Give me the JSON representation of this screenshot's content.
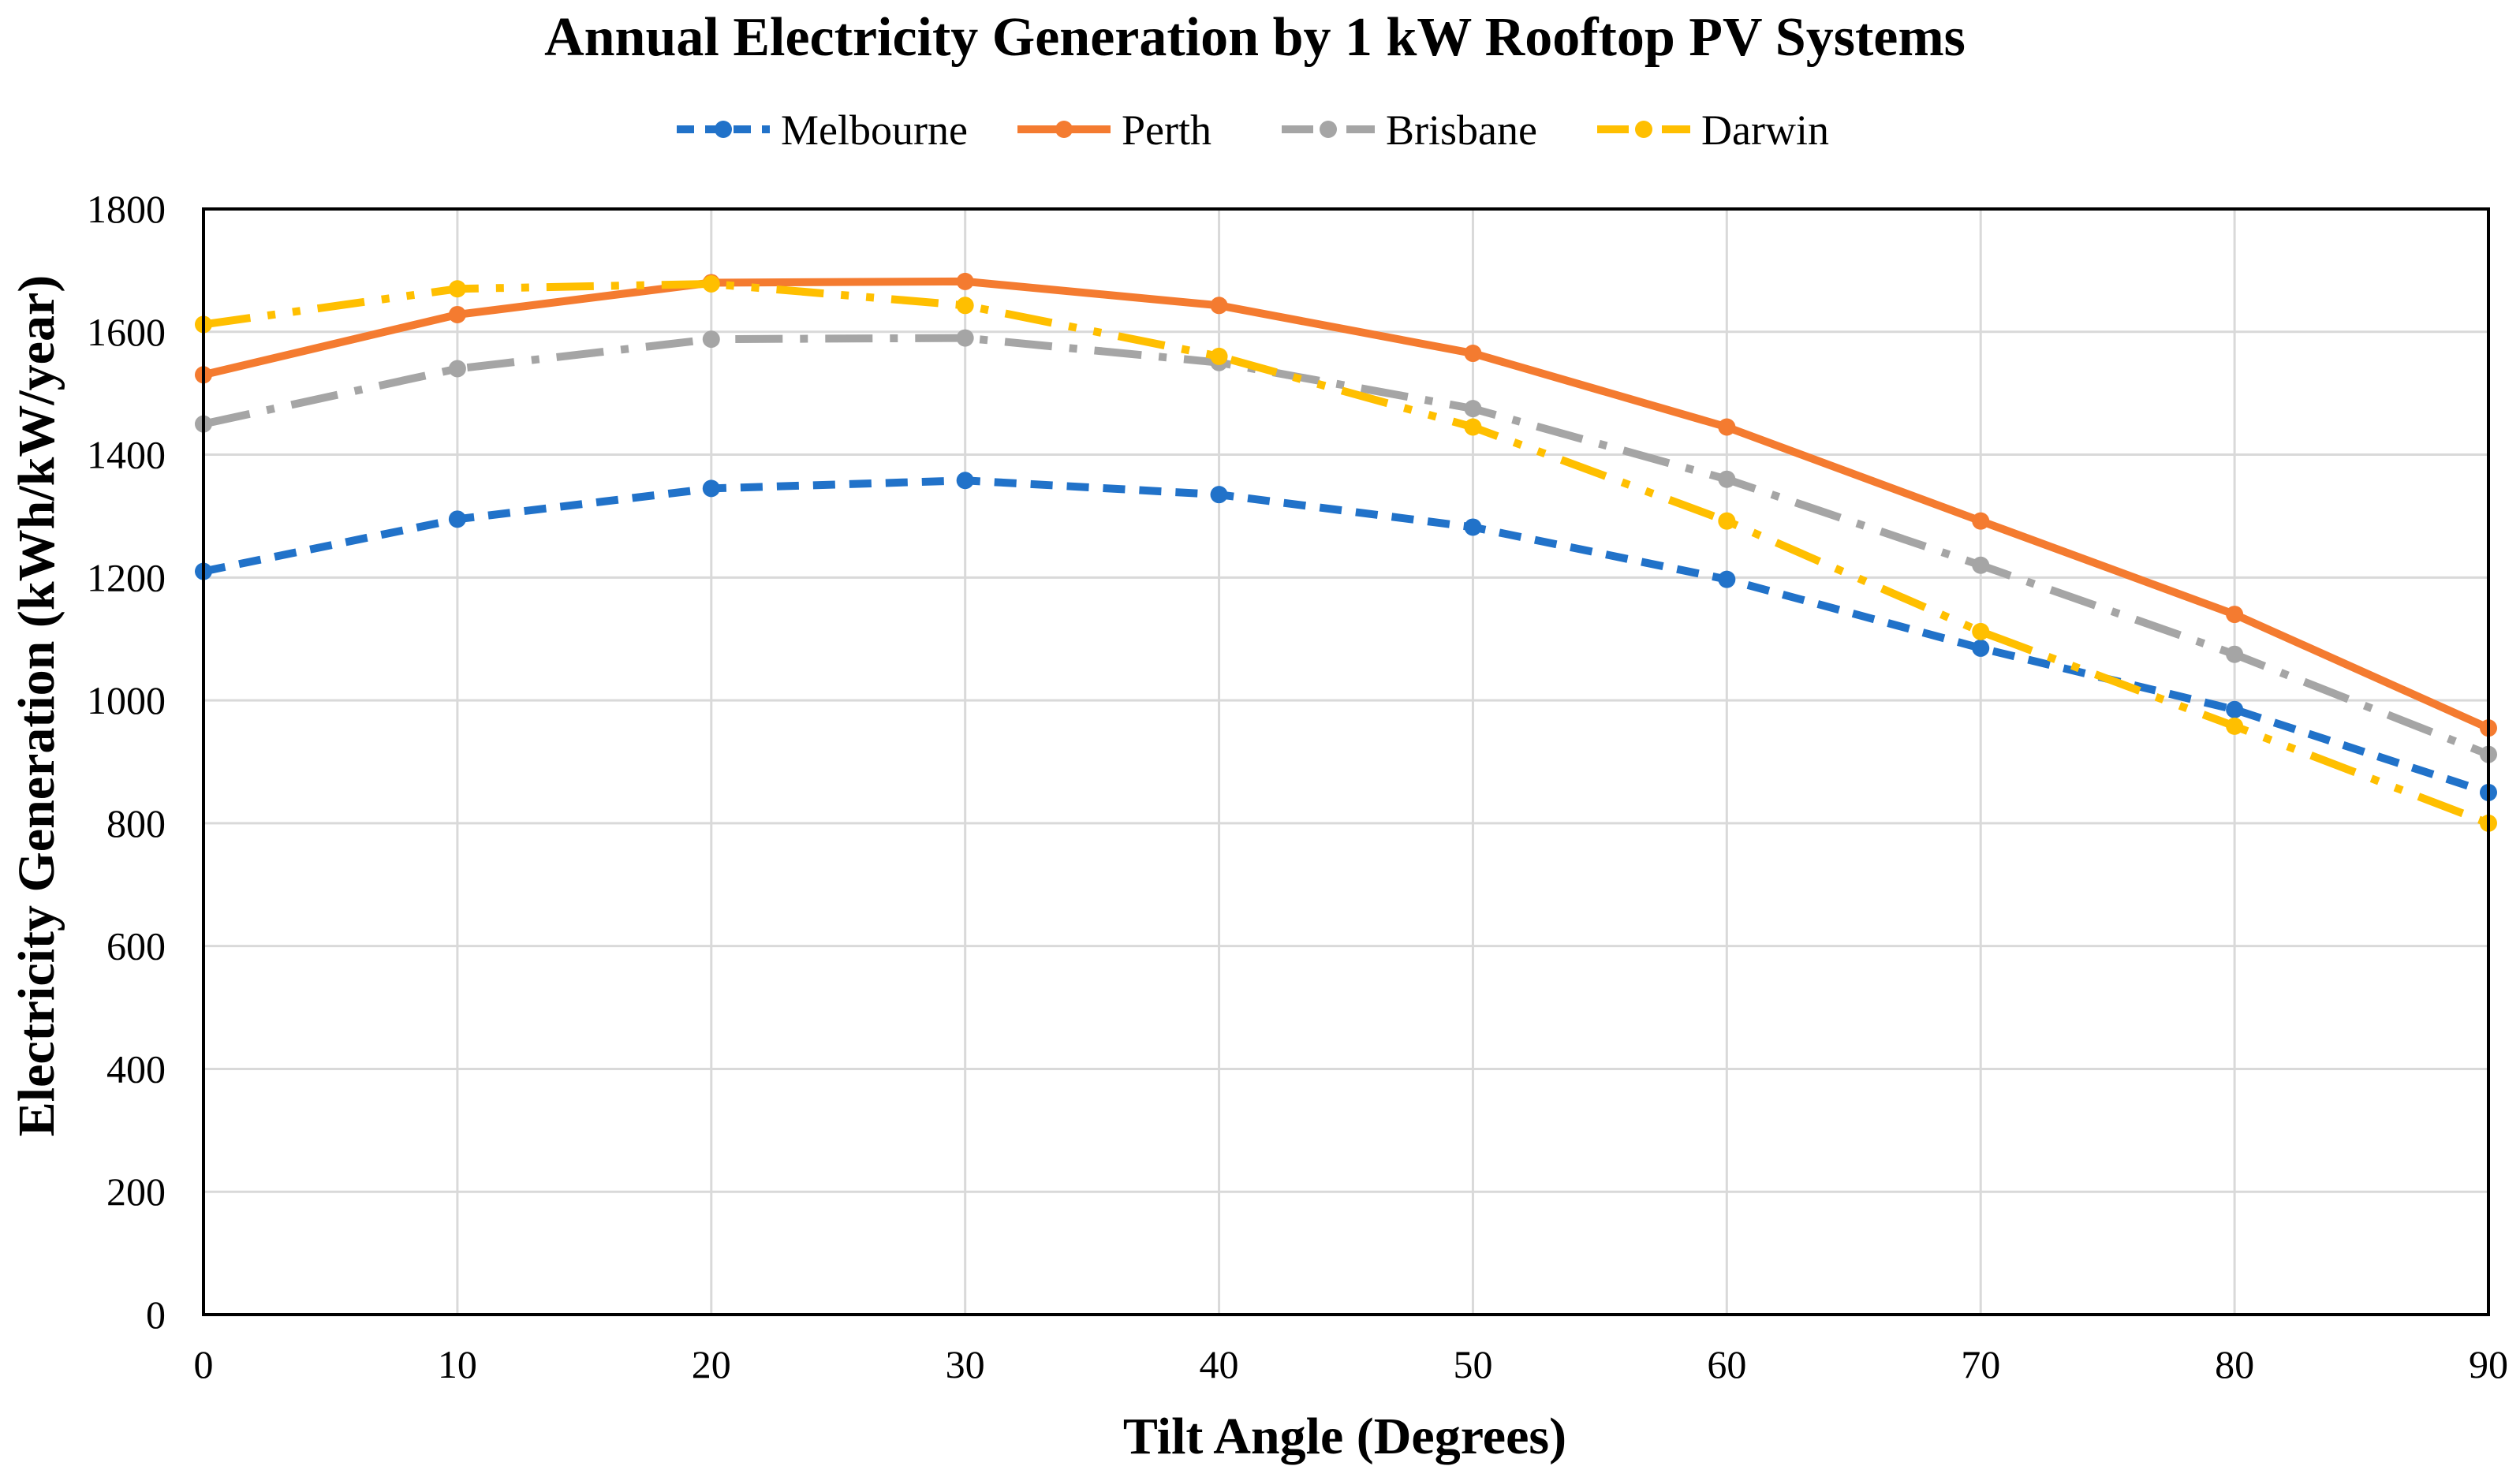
{
  "chart_data": {
    "type": "line",
    "title": "Annual Electricity Generation by 1 kW Rooftop PV Systems",
    "xlabel": "Tilt Angle (Degrees)",
    "ylabel": "Electricity Generation (kWh/kW/year)",
    "x": [
      0,
      10,
      20,
      30,
      40,
      50,
      60,
      70,
      80,
      90
    ],
    "xlim": [
      0,
      90
    ],
    "ylim": [
      0,
      1800
    ],
    "xticks": [
      "0",
      "10",
      "20",
      "30",
      "40",
      "50",
      "60",
      "70",
      "80",
      "90"
    ],
    "yticks": [
      "0",
      "200",
      "400",
      "600",
      "800",
      "1000",
      "1200",
      "1400",
      "1600",
      "1800"
    ],
    "grid": true,
    "legend_position": "top",
    "series": [
      {
        "name": "Melbourne",
        "color": "#2172c9",
        "dash": "dashed",
        "values": [
          1210,
          1295,
          1345,
          1358,
          1335,
          1282,
          1197,
          1085,
          985,
          850
        ]
      },
      {
        "name": "Perth",
        "color": "#f47b30",
        "dash": "solid",
        "values": [
          1530,
          1628,
          1680,
          1682,
          1643,
          1565,
          1445,
          1292,
          1140,
          955
        ]
      },
      {
        "name": "Brisbane",
        "color": "#a5a5a5",
        "dash": "dash-dot",
        "values": [
          1450,
          1540,
          1588,
          1590,
          1550,
          1475,
          1360,
          1220,
          1075,
          912
        ]
      },
      {
        "name": "Darwin",
        "color": "#ffbf00",
        "dash": "dash-dot-dot",
        "values": [
          1612,
          1670,
          1678,
          1643,
          1560,
          1445,
          1292,
          1112,
          958,
          800
        ]
      }
    ]
  }
}
